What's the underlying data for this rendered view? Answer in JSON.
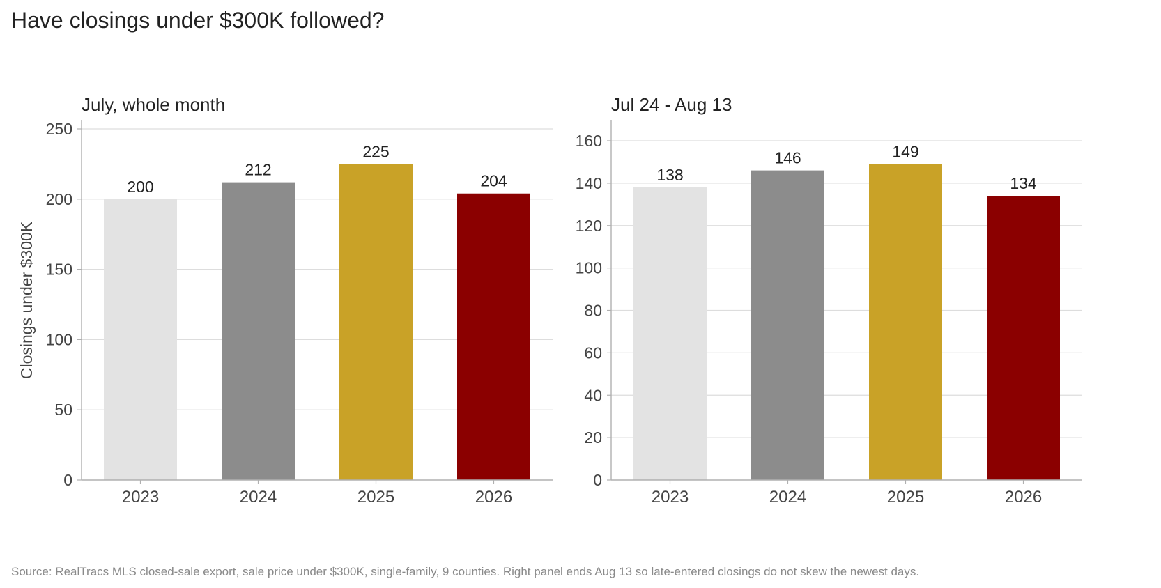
{
  "title": "Have closings under $300K followed?",
  "source": "Source: RealTracs MLS closed-sale export, sale price under $300K, single-family, 9 counties. Right panel ends Aug 13 so late-entered closings do not skew the newest days.",
  "colors": {
    "2023": "#e3e3e3",
    "2024": "#8c8c8c",
    "2025": "#c9a227",
    "2026": "#8b0000",
    "grid": "#dddddd",
    "axis": "#b0b0b0",
    "tick_text": "#444444",
    "label_text": "#222222"
  },
  "chart_data": [
    {
      "type": "bar",
      "title": "July, whole month",
      "ylabel": "Closings under $300K",
      "xlabel": "",
      "categories": [
        "2023",
        "2024",
        "2025",
        "2026"
      ],
      "values": [
        200,
        212,
        225,
        204
      ],
      "ylim": [
        0,
        250
      ],
      "yticks": [
        0,
        50,
        100,
        150,
        200,
        250
      ],
      "grid": true,
      "data_labels": true
    },
    {
      "type": "bar",
      "title": "Jul 24 - Aug 13",
      "ylabel": "",
      "xlabel": "",
      "categories": [
        "2023",
        "2024",
        "2025",
        "2026"
      ],
      "values": [
        138,
        146,
        149,
        134
      ],
      "ylim": [
        0,
        160
      ],
      "yticks": [
        0,
        20,
        40,
        60,
        80,
        100,
        120,
        140,
        160
      ],
      "grid": true,
      "data_labels": true
    }
  ]
}
